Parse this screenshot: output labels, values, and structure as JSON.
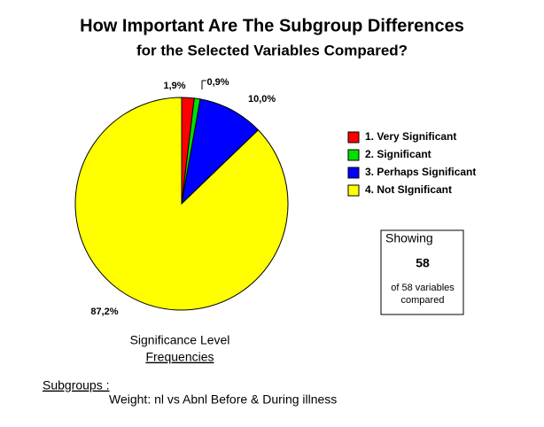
{
  "chart_data": {
    "type": "pie",
    "title": "How Important Are The Subgroup Differences",
    "subtitle": "for the Selected Variables Compared?",
    "categories": [
      "1. Very Significant",
      "2. Significant",
      "3. Perhaps Significant",
      "4. Not SIgnificant"
    ],
    "values": [
      1.9,
      0.9,
      10.0,
      87.2
    ],
    "value_labels": [
      "1,9%",
      "0,9%",
      "10,0%",
      "87,2%"
    ],
    "colors": [
      "#ff0000",
      "#00e000",
      "#0000ff",
      "#ffff00"
    ],
    "legend": "right",
    "caption": [
      "Significance Level",
      "Frequencies"
    ],
    "summary_box": {
      "heading": "Showing",
      "count": 58,
      "note": [
        "of 58 variables",
        "compared"
      ]
    },
    "subgroups": {
      "heading": "Subgroups :",
      "text": "Weight: nl vs Abnl Before & During illness"
    }
  }
}
